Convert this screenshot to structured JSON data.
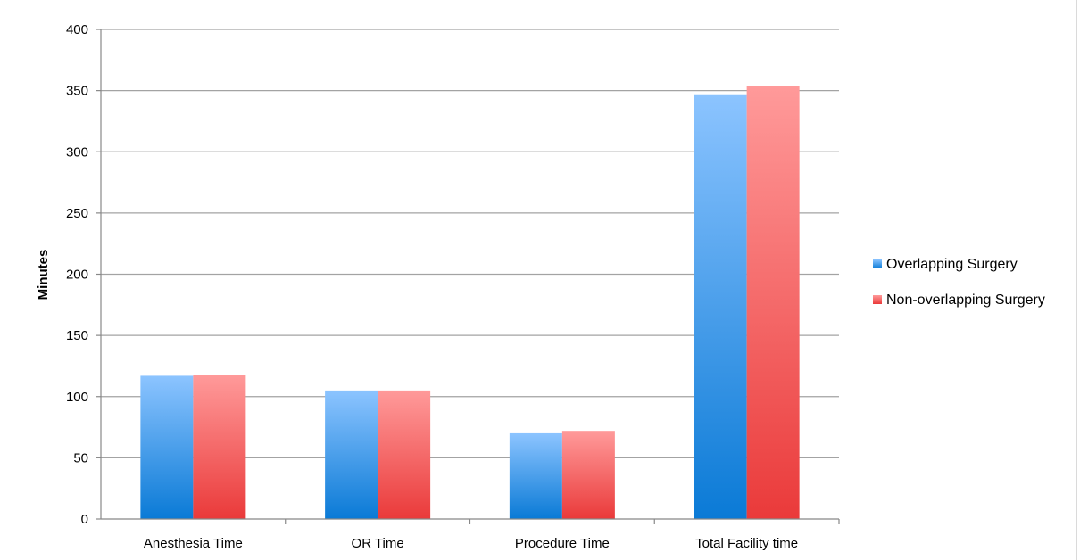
{
  "chart_data": {
    "type": "bar",
    "title": "",
    "xlabel": "",
    "ylabel": "Minutes",
    "categories": [
      "Anesthesia Time",
      "OR Time",
      "Procedure Time",
      "Total Facility time"
    ],
    "series": [
      {
        "name": "Overlapping Surgery",
        "values": [
          117,
          105,
          70,
          347
        ],
        "color": "#3b8fe0"
      },
      {
        "name": "Non-overlapping Surgery",
        "values": [
          118,
          105,
          72,
          354
        ],
        "color": "#f05555"
      }
    ],
    "ylim": [
      0,
      400
    ],
    "yticks": [
      0,
      50,
      100,
      150,
      200,
      250,
      300,
      350,
      400
    ],
    "grid": true,
    "legend_position": "right"
  }
}
